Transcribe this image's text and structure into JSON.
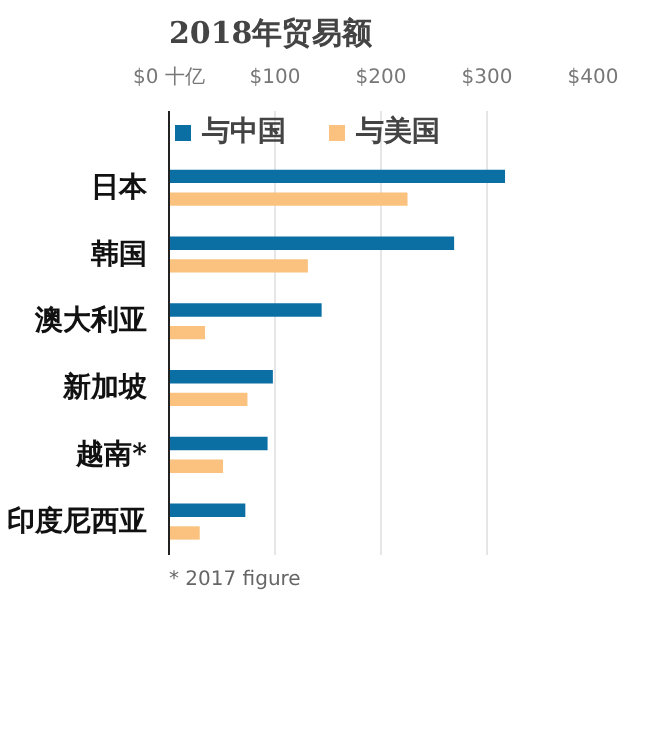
{
  "chart_data": {
    "type": "bar",
    "orientation": "horizontal",
    "title": "2018年贸易额",
    "categories": [
      "日本",
      "韩国",
      "澳大利亚",
      "新加坡",
      "越南*",
      "印度尼西亚"
    ],
    "series": [
      {
        "name": "与中国",
        "color": "#0b6fa4",
        "values": [
          317,
          269,
          144,
          98,
          93,
          72
        ]
      },
      {
        "name": "与美国",
        "color": "#fac27e",
        "values": [
          225,
          131,
          34,
          74,
          51,
          29
        ]
      }
    ],
    "xlim": [
      0,
      400
    ],
    "xticks": [
      {
        "value": 0,
        "label": "$0 十亿"
      },
      {
        "value": 100,
        "label": "$100"
      },
      {
        "value": 200,
        "label": "$200"
      },
      {
        "value": 300,
        "label": "$300"
      },
      {
        "value": 400,
        "label": "$400"
      }
    ],
    "grid": "x",
    "legend": "top left",
    "annotations": [
      "* 2017 figure"
    ]
  }
}
